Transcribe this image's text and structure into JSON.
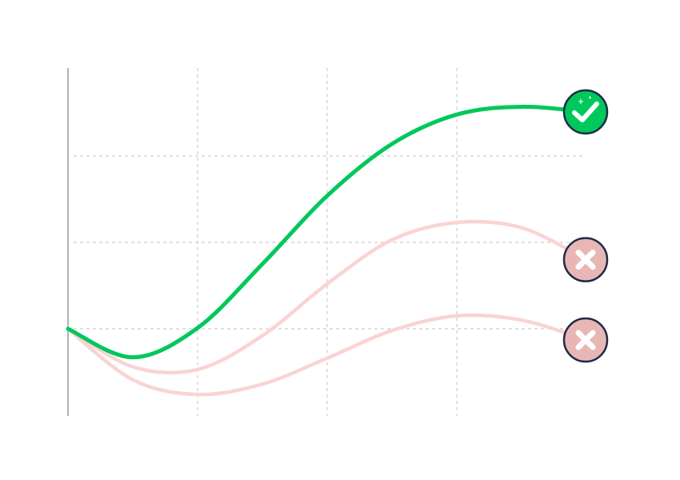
{
  "chart_data": {
    "type": "line",
    "x": [
      0,
      0.5,
      1,
      1.5,
      2,
      2.5,
      3,
      3.5,
      4
    ],
    "xlim": [
      0,
      4
    ],
    "ylim": [
      0,
      4
    ],
    "xticks": [
      1,
      2,
      3
    ],
    "yticks": [
      1,
      2,
      3
    ],
    "grid": true,
    "series": [
      {
        "color": "#00c85a",
        "marker": "check",
        "values": [
          1.0,
          0.67,
          1.01,
          1.75,
          2.54,
          3.14,
          3.48,
          3.57,
          3.51
        ]
      },
      {
        "color": "#fbd3d3",
        "marker": "cross",
        "values": [
          1.0,
          0.56,
          0.53,
          0.92,
          1.52,
          2.03,
          2.23,
          2.17,
          1.8
        ]
      },
      {
        "color": "#fbd3d3",
        "marker": "cross",
        "values": [
          1.0,
          0.41,
          0.24,
          0.36,
          0.66,
          0.98,
          1.15,
          1.1,
          0.87
        ]
      }
    ]
  }
}
